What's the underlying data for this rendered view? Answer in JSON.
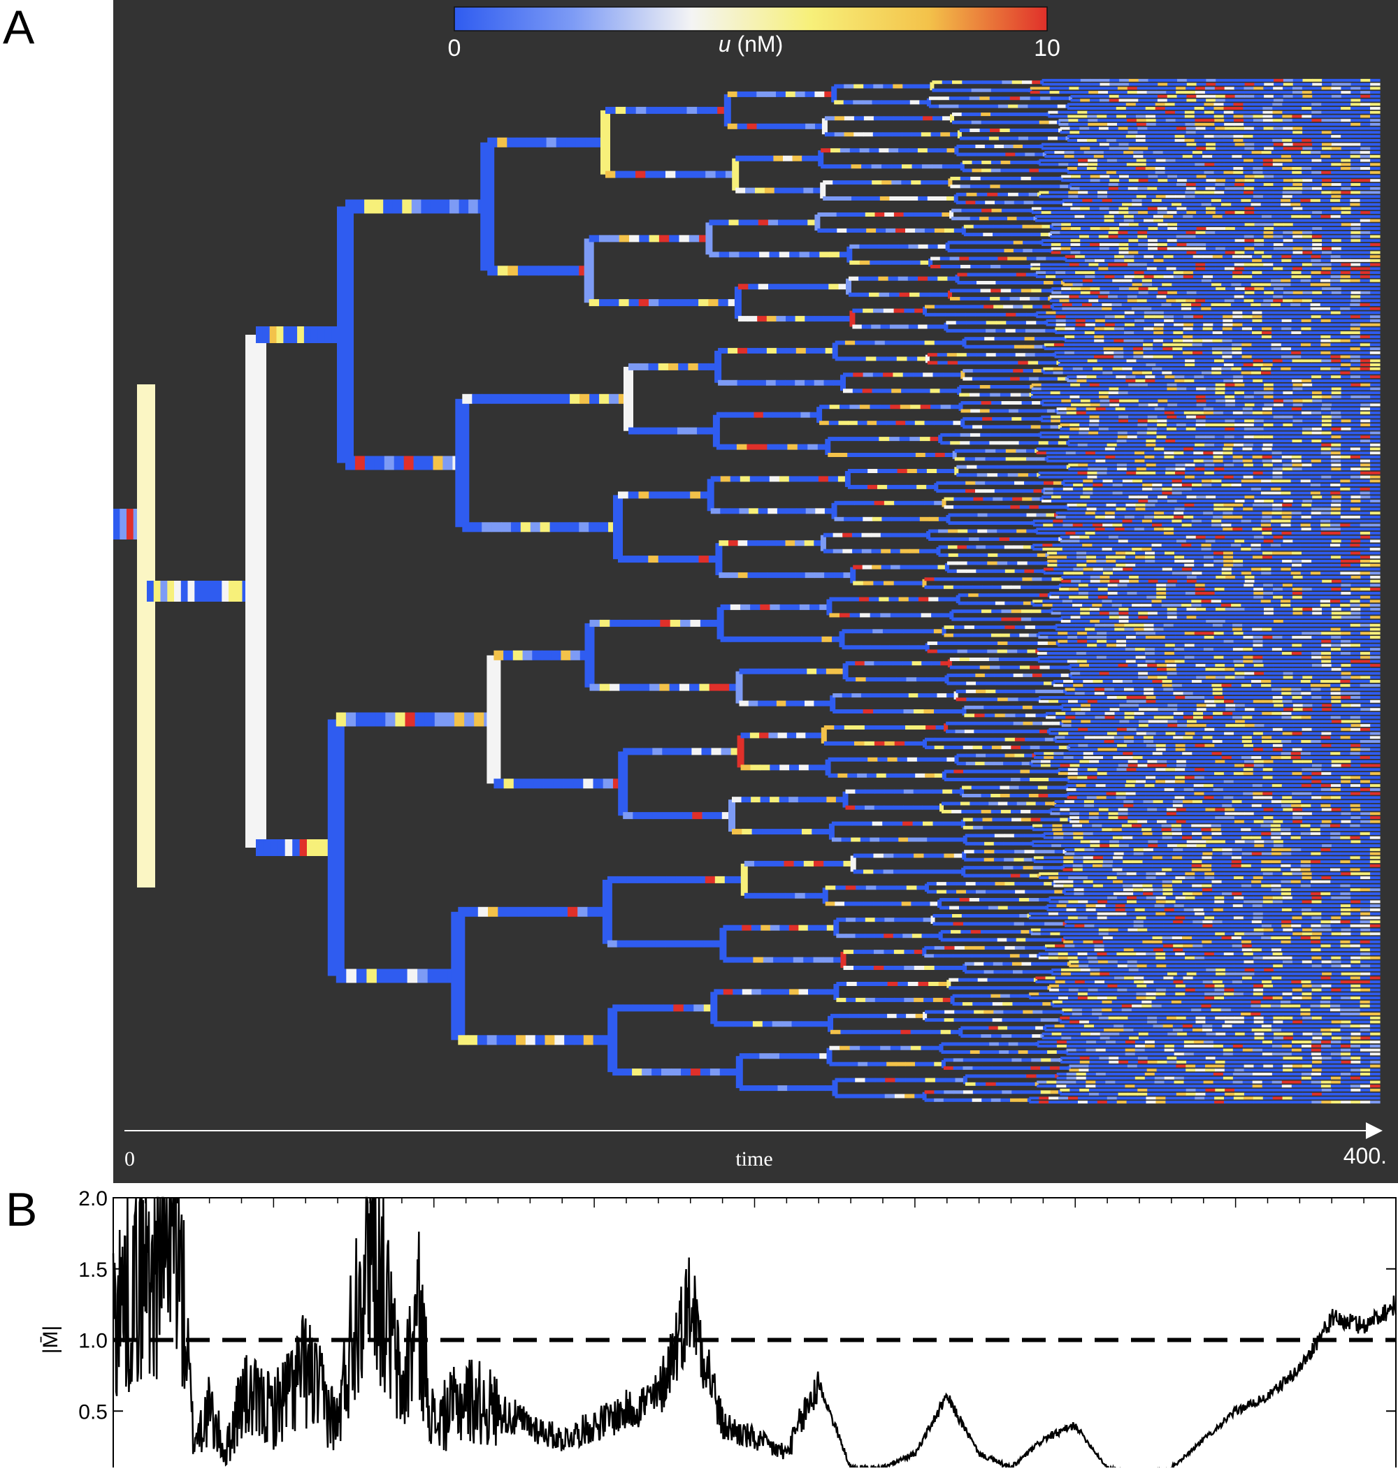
{
  "figure": {
    "panel_a_label": "A",
    "panel_b_label": "B"
  },
  "colorbar": {
    "min_label": "0",
    "max_label": "10",
    "label_var": "u",
    "label_unit": " (nM)",
    "stops": [
      "#2f5cf0",
      "#7d9bf5",
      "#f4f4f4",
      "#f7f07a",
      "#f3c24a",
      "#e0302a"
    ]
  },
  "tree": {
    "time_axis_label": "time",
    "time_start_label": "0",
    "time_end_label": "400.",
    "background": "#333333",
    "generations": 9
  },
  "chart_data": {
    "type": "line",
    "ylabel": "|M̄|",
    "xlim": [
      0,
      400
    ],
    "ylim": [
      0.0,
      2.0
    ],
    "yticks": [
      "0.0",
      "0.5",
      "1.0",
      "1.5",
      "2.0"
    ],
    "grid": false,
    "series": [
      {
        "style": "dashed-reference",
        "x": [
          0,
          400
        ],
        "values": [
          1.0,
          1.0
        ]
      },
      {
        "style": "solid",
        "x": [
          0,
          10,
          20,
          25,
          30,
          35,
          40,
          50,
          60,
          70,
          80,
          90,
          95,
          100,
          110,
          120,
          130,
          140,
          150,
          160,
          170,
          180,
          190,
          200,
          210,
          220,
          230,
          240,
          250,
          260,
          270,
          280,
          290,
          300,
          310,
          320,
          330,
          340,
          350,
          360,
          370,
          380,
          390,
          400
        ],
        "values": [
          1.2,
          1.5,
          1.8,
          0.3,
          0.5,
          0.2,
          0.6,
          0.5,
          0.8,
          0.4,
          1.9,
          0.6,
          1.2,
          0.4,
          0.6,
          0.5,
          0.4,
          0.3,
          0.4,
          0.5,
          0.6,
          1.3,
          0.4,
          0.3,
          0.2,
          0.7,
          0.1,
          0.1,
          0.2,
          0.6,
          0.2,
          0.1,
          0.3,
          0.4,
          0.1,
          0.05,
          0.1,
          0.3,
          0.5,
          0.6,
          0.8,
          1.15,
          1.1,
          1.25
        ]
      }
    ]
  }
}
